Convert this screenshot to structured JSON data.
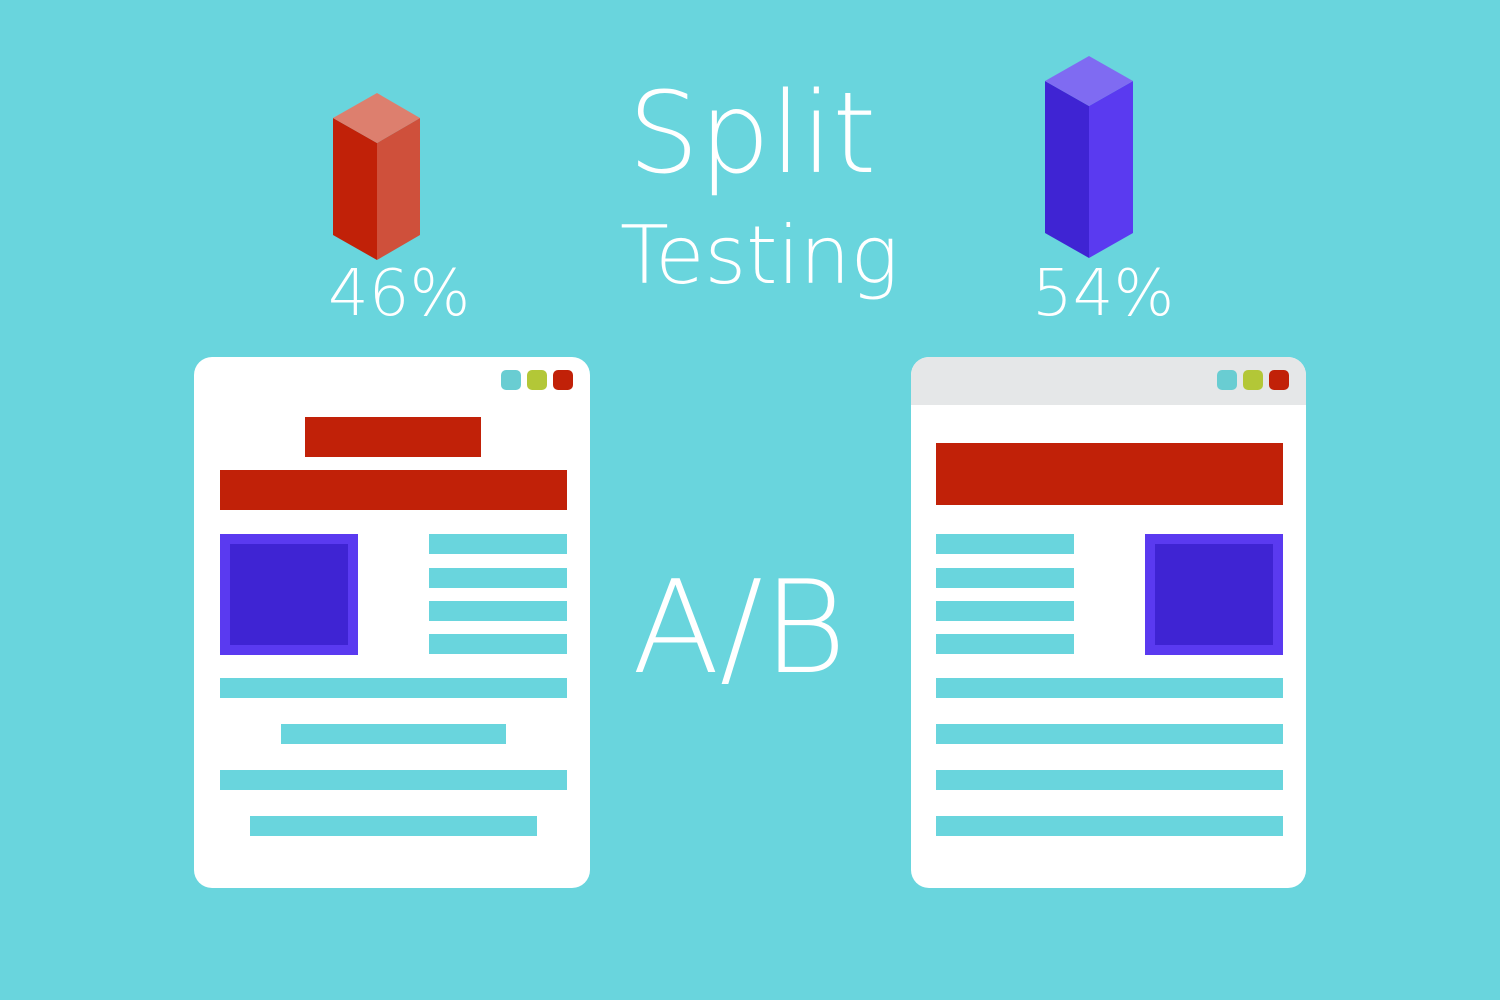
{
  "title": {
    "line1": "Split",
    "line2": "Testing"
  },
  "center_label": "A/B",
  "variant_a": {
    "percent": "46%",
    "value": 46,
    "bar_color": "#c12108"
  },
  "variant_b": {
    "percent": "54%",
    "value": 54,
    "bar_color": "#3f24d3"
  },
  "colors": {
    "background": "#69d5dd",
    "accent_red": "#c12108",
    "accent_purple": "#5a3af0",
    "window_dots": [
      "#69cdd2",
      "#b3c737",
      "#c12108"
    ],
    "header_gray": "#e5e7e8"
  }
}
